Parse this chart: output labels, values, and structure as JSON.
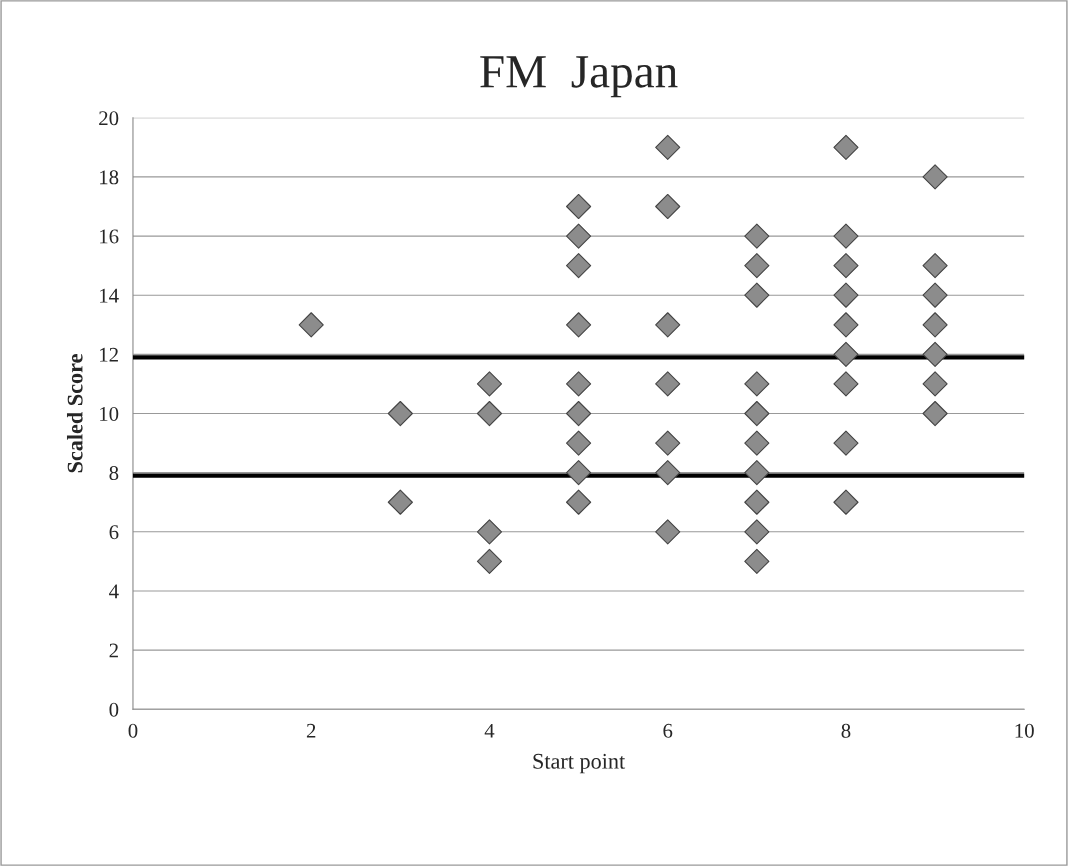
{
  "chart_data": {
    "type": "scatter",
    "title": "FM  Japan",
    "xlabel": "Start point",
    "ylabel": "Scaled Score",
    "series": [
      {
        "color": "#8c8c8c",
        "x": [
          2,
          3,
          3,
          4,
          4,
          4,
          4,
          5,
          5,
          5,
          5,
          5,
          5,
          5,
          5,
          5,
          6,
          6,
          6,
          6,
          6,
          6,
          6,
          7,
          7,
          7,
          7,
          7,
          7,
          7,
          7,
          7,
          7,
          8,
          8,
          8,
          8,
          8,
          8,
          8,
          8,
          8,
          9,
          9,
          9,
          9,
          9,
          9,
          9
        ],
        "values": [
          13,
          10,
          7,
          11,
          10,
          6,
          5,
          17,
          16,
          15,
          13,
          11,
          10,
          9,
          8,
          7,
          19,
          17,
          13,
          11,
          9,
          8,
          6,
          16,
          15,
          14,
          11,
          10,
          9,
          8,
          7,
          6,
          5,
          19,
          16,
          15,
          14,
          13,
          12,
          11,
          9,
          7,
          18,
          15,
          14,
          13,
          12,
          11,
          10
        ]
      }
    ],
    "xlim": [
      0,
      10
    ],
    "xticks": [
      0,
      2,
      4,
      6,
      8,
      10
    ],
    "ylim": [
      0,
      20
    ],
    "yticks": [
      0,
      2,
      4,
      6,
      8,
      10,
      12,
      14,
      16,
      18,
      20
    ],
    "ref_lines": [
      {
        "axis": "y",
        "value": 11.9,
        "color": "#000000"
      },
      {
        "axis": "y",
        "value": 7.9,
        "color": "#000000"
      }
    ],
    "grid": "y",
    "legend": false,
    "marker": "diamond"
  }
}
